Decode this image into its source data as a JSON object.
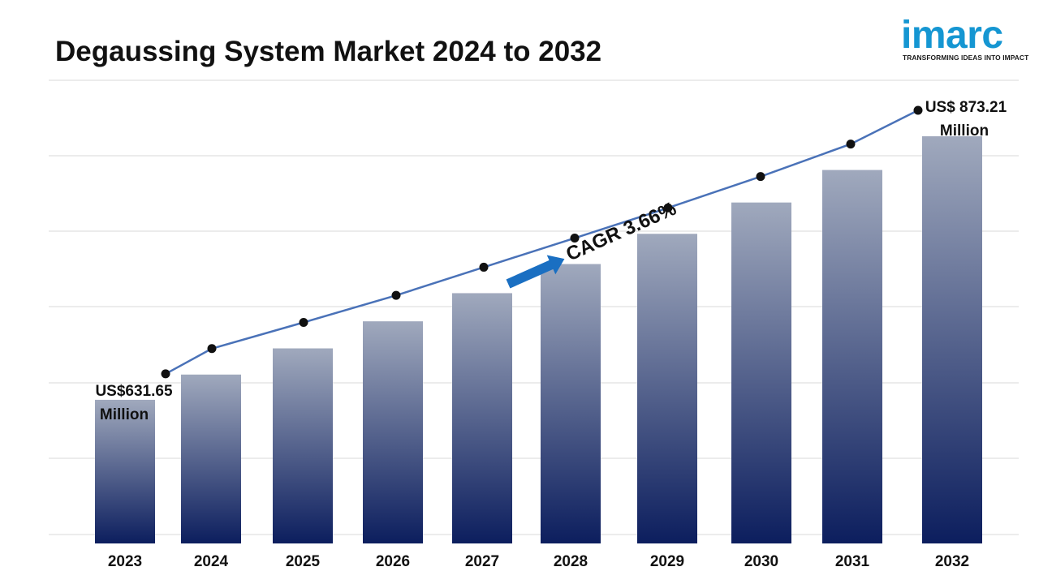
{
  "title": "Degaussing System Market 2024 to 2032",
  "logo": {
    "word": "imarc",
    "tagline": "TRANSFORMING IDEAS INTO IMPACT"
  },
  "colors": {
    "bar_top": "#a0a9bd",
    "bar_bottom": "#0c1e5e",
    "line": "#4a72b8",
    "marker": "#111111",
    "arrow": "#1a6fc2",
    "grid": "#d9d9d9",
    "logo": "#1596d2"
  },
  "annotations": {
    "start_value": "US$631.65",
    "start_unit": "Million",
    "end_value": "US$ 873.21",
    "end_unit": "Million",
    "cagr": "CAGR 3.66%"
  },
  "chart_data": {
    "type": "bar",
    "title": "Degaussing System Market 2024 to 2032",
    "xlabel": "",
    "ylabel": "",
    "categories": [
      "2023",
      "2024",
      "2025",
      "2026",
      "2027",
      "2028",
      "2029",
      "2030",
      "2031",
      "2032"
    ],
    "series": [
      {
        "values": [
          631.65,
          654.8,
          678.8,
          703.6,
          729.4,
          756.1,
          783.8,
          812.5,
          842.3,
          873.21
        ]
      }
    ],
    "ylim": [
      500,
      880
    ],
    "grid": true,
    "legend": "none"
  }
}
